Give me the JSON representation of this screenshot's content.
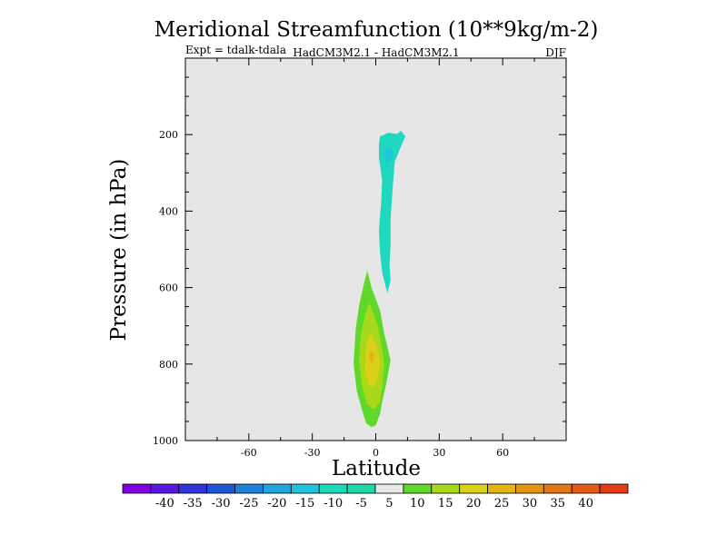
{
  "chart_data": {
    "type": "contour",
    "title": "Meridional Streamfunction (10**9kg/m-2)",
    "subtitle_left": "Expt = tdalk-tdala",
    "subtitle_center": "HadCM3M2.1 - HadCM3M2.1",
    "subtitle_right": "DJF",
    "xlabel": "Latitude",
    "ylabel": "Pressure (in hPa)",
    "xlim": [
      -90,
      90
    ],
    "ylim": [
      1000,
      0
    ],
    "x_ticks": [
      -60,
      -30,
      0,
      30,
      60
    ],
    "x_tick_labels": [
      "-60",
      "-30",
      "0",
      "30",
      "60"
    ],
    "y_ticks": [
      200,
      400,
      600,
      800,
      1000
    ],
    "y_tick_labels": [
      "200",
      "400",
      "600",
      "800",
      "1000"
    ],
    "background_color": "#e6e6e6",
    "features": [
      {
        "name": "upper-cell",
        "level": -10,
        "color": "#1fd8c0",
        "outline": [
          [
            2,
            205
          ],
          [
            6,
            195
          ],
          [
            10,
            198
          ],
          [
            12,
            190
          ],
          [
            14,
            205
          ],
          [
            12,
            230
          ],
          [
            9,
            270
          ],
          [
            8,
            340
          ],
          [
            7,
            420
          ],
          [
            7,
            490
          ],
          [
            6.5,
            540
          ],
          [
            7,
            580
          ],
          [
            5.5,
            615
          ],
          [
            3,
            560
          ],
          [
            2,
            510
          ],
          [
            1.5,
            450
          ],
          [
            2.5,
            380
          ],
          [
            3,
            320
          ],
          [
            1.5,
            260
          ],
          [
            1.5,
            225
          ]
        ]
      },
      {
        "name": "upper-cell-core",
        "level": -15,
        "color": "#21c6dc",
        "outline": [
          [
            5,
            230
          ],
          [
            8,
            240
          ],
          [
            8,
            265
          ],
          [
            5,
            275
          ],
          [
            4,
            255
          ]
        ]
      },
      {
        "name": "lower-cell",
        "level": 10,
        "color": "#5fd82a",
        "outline": [
          [
            -4,
            555
          ],
          [
            -2,
            600
          ],
          [
            2,
            660
          ],
          [
            4,
            720
          ],
          [
            7,
            790
          ],
          [
            5,
            850
          ],
          [
            3,
            900
          ],
          [
            2,
            930
          ],
          [
            0,
            960
          ],
          [
            -2,
            965
          ],
          [
            -4.5,
            955
          ],
          [
            -6.5,
            920
          ],
          [
            -9,
            870
          ],
          [
            -10.5,
            800
          ],
          [
            -9.5,
            710
          ],
          [
            -8,
            650
          ],
          [
            -6,
            600
          ]
        ]
      },
      {
        "name": "lower-cell-level-15",
        "level": 15,
        "color": "#a8d81a",
        "outline": [
          [
            -3,
            640
          ],
          [
            1,
            700
          ],
          [
            3,
            760
          ],
          [
            4,
            800
          ],
          [
            3,
            860
          ],
          [
            2,
            900
          ],
          [
            -1,
            920
          ],
          [
            -4,
            905
          ],
          [
            -6.5,
            860
          ],
          [
            -8,
            790
          ],
          [
            -7,
            720
          ],
          [
            -5,
            670
          ]
        ]
      },
      {
        "name": "lower-cell-level-20",
        "level": 20,
        "color": "#d8d01a",
        "outline": [
          [
            -2,
            720
          ],
          [
            1,
            760
          ],
          [
            2,
            800
          ],
          [
            1,
            840
          ],
          [
            -1,
            860
          ],
          [
            -3.5,
            855
          ],
          [
            -5,
            820
          ],
          [
            -5,
            770
          ],
          [
            -4,
            740
          ]
        ]
      },
      {
        "name": "lower-cell-level-25",
        "level": 25,
        "color": "#e2b414",
        "outline": [
          [
            -1.5,
            765
          ],
          [
            -0.5,
            780
          ],
          [
            -1.5,
            795
          ],
          [
            -3,
            790
          ],
          [
            -3,
            772
          ]
        ]
      }
    ],
    "colorbar": {
      "levels": [
        "-40",
        "-35",
        "-30",
        "-25",
        "-20",
        "-15",
        "-10",
        "-5",
        "5",
        "10",
        "15",
        "20",
        "25",
        "30",
        "35",
        "40"
      ],
      "colors": [
        "#8000e0",
        "#5a18de",
        "#2f33d8",
        "#1f55d8",
        "#1e82dc",
        "#1fa6dc",
        "#20c2dc",
        "#1ed8bc",
        "#1ed8a8",
        "#e8e8e8",
        "#5fd82a",
        "#a8d81a",
        "#d8d01a",
        "#e2b414",
        "#e29614",
        "#e27814",
        "#e25a14",
        "#e23c14"
      ]
    }
  }
}
